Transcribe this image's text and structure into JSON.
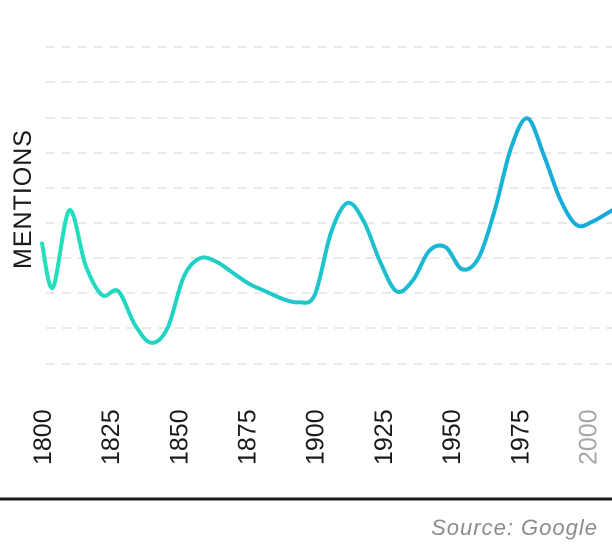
{
  "chart_data": {
    "type": "line",
    "title": "",
    "xlabel": "",
    "ylabel": "MENTIONS",
    "xlim": [
      1800,
      2009
    ],
    "ylim": [
      0,
      100
    ],
    "grid": true,
    "x_ticks": [
      1800,
      1825,
      1850,
      1875,
      1900,
      1925,
      1950,
      1975,
      2000
    ],
    "muted_ticks": [
      2000
    ],
    "series": [
      {
        "x": [
          1800,
          1804,
          1810,
          1816,
          1822,
          1828,
          1834,
          1840,
          1846,
          1852,
          1858,
          1864,
          1870,
          1876,
          1882,
          1888,
          1894,
          1900,
          1906,
          1912,
          1918,
          1924,
          1930,
          1936,
          1942,
          1948,
          1954,
          1960,
          1966,
          1972,
          1978,
          1984,
          1990,
          1996,
          2002,
          2009
        ],
        "values": [
          42,
          30,
          51,
          36,
          28,
          29,
          20,
          15,
          19,
          33,
          38,
          37,
          34,
          31,
          29,
          27,
          26,
          28,
          45,
          53,
          48,
          37,
          29,
          32,
          40,
          41,
          35,
          38,
          51,
          68,
          76,
          66,
          54,
          47,
          48,
          51
        ]
      }
    ],
    "gradient": [
      "#22e0bc",
      "#17a7dc"
    ]
  },
  "source": "Source: Google"
}
